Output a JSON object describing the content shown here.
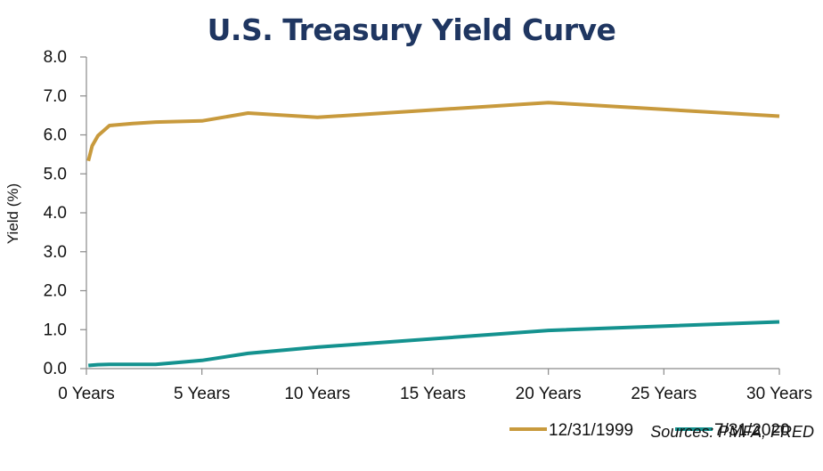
{
  "title": "U.S. Treasury Yield Curve",
  "source": "Sources: PMFA, FRED",
  "colors": {
    "s1999": "#c89a3d",
    "s2020": "#14928f",
    "title": "#1f3661"
  },
  "chart_data": {
    "type": "line",
    "title": "U.S. Treasury Yield Curve",
    "xlabel": "",
    "ylabel": "Yield (%)",
    "xlim": [
      0,
      30
    ],
    "ylim": [
      0,
      8
    ],
    "grid": false,
    "legend_position": "bottom-right",
    "x_ticks": [
      0,
      5,
      10,
      15,
      20,
      25,
      30
    ],
    "x_tick_labels": [
      "0 Years",
      "5 Years",
      "10 Years",
      "15 Years",
      "20 Years",
      "25 Years",
      "30 Years"
    ],
    "y_ticks": [
      0,
      1,
      2,
      3,
      4,
      5,
      6,
      7,
      8
    ],
    "y_tick_labels": [
      "0.0",
      "1.0",
      "2.0",
      "3.0",
      "4.0",
      "5.0",
      "6.0",
      "7.0",
      "8.0"
    ],
    "series": [
      {
        "name": "12/31/1999",
        "color": "#c89a3d",
        "x": [
          0.083,
          0.25,
          0.5,
          1,
          2,
          3,
          5,
          7,
          10,
          20,
          30
        ],
        "y": [
          5.33,
          5.72,
          5.98,
          6.24,
          6.29,
          6.33,
          6.36,
          6.56,
          6.45,
          6.83,
          6.48
        ]
      },
      {
        "name": "7/31/2020",
        "color": "#14928f",
        "x": [
          0.083,
          0.25,
          0.5,
          1,
          2,
          3,
          5,
          7,
          10,
          20,
          30
        ],
        "y": [
          0.08,
          0.09,
          0.1,
          0.11,
          0.11,
          0.11,
          0.21,
          0.39,
          0.55,
          0.98,
          1.2
        ]
      }
    ]
  }
}
